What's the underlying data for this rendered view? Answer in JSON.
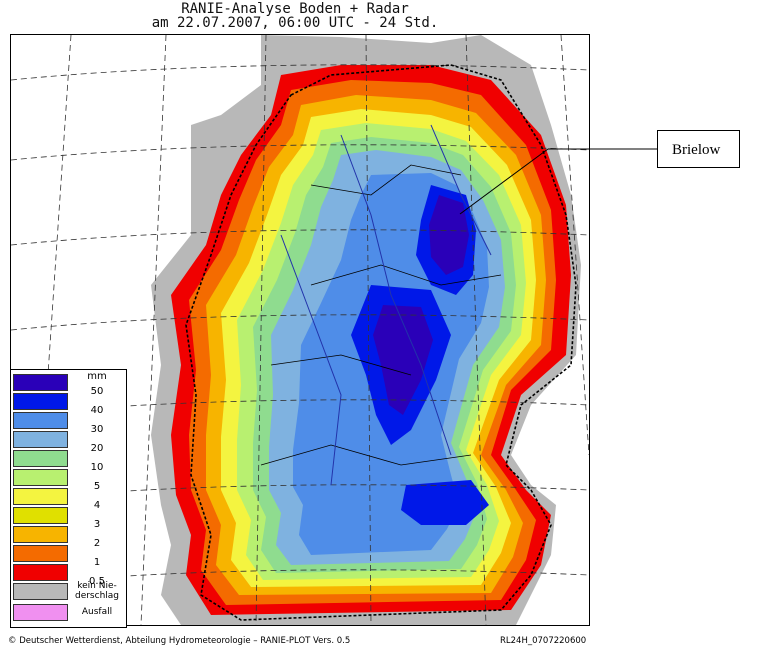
{
  "header": {
    "title_line1": "RANIE-Analyse Boden + Radar",
    "title_line2": "am 22.07.2007, 06:00 UTC - 24 Std."
  },
  "annotation": {
    "label": "Brielow"
  },
  "legend": {
    "unit": "mm",
    "items": [
      {
        "label": "50",
        "color": "#2a00b8"
      },
      {
        "label": "40",
        "color": "#0018e8"
      },
      {
        "label": "30",
        "color": "#4f8de8"
      },
      {
        "label": "20",
        "color": "#7fb2e0"
      },
      {
        "label": "10",
        "color": "#8fdc8f"
      },
      {
        "label": "5",
        "color": "#b8f070"
      },
      {
        "label": "4",
        "color": "#f4f440"
      },
      {
        "label": "3",
        "color": "#e0e000"
      },
      {
        "label": "2",
        "color": "#f7b400"
      },
      {
        "label": "1",
        "color": "#f46b00"
      },
      {
        "label": "0.5",
        "color": "#f00000"
      }
    ],
    "no_precip_label": "kein Nie-derschlag",
    "no_precip_color": "#b8b8b8",
    "failure_label": "Ausfall",
    "failure_color": "#f090f0"
  },
  "footer": {
    "left": "© Deutscher Wetterdienst, Abteilung Hydrometeorologie – RANIE-PLOT Vers. 0.5",
    "right": "RL24H_0707220600"
  }
}
